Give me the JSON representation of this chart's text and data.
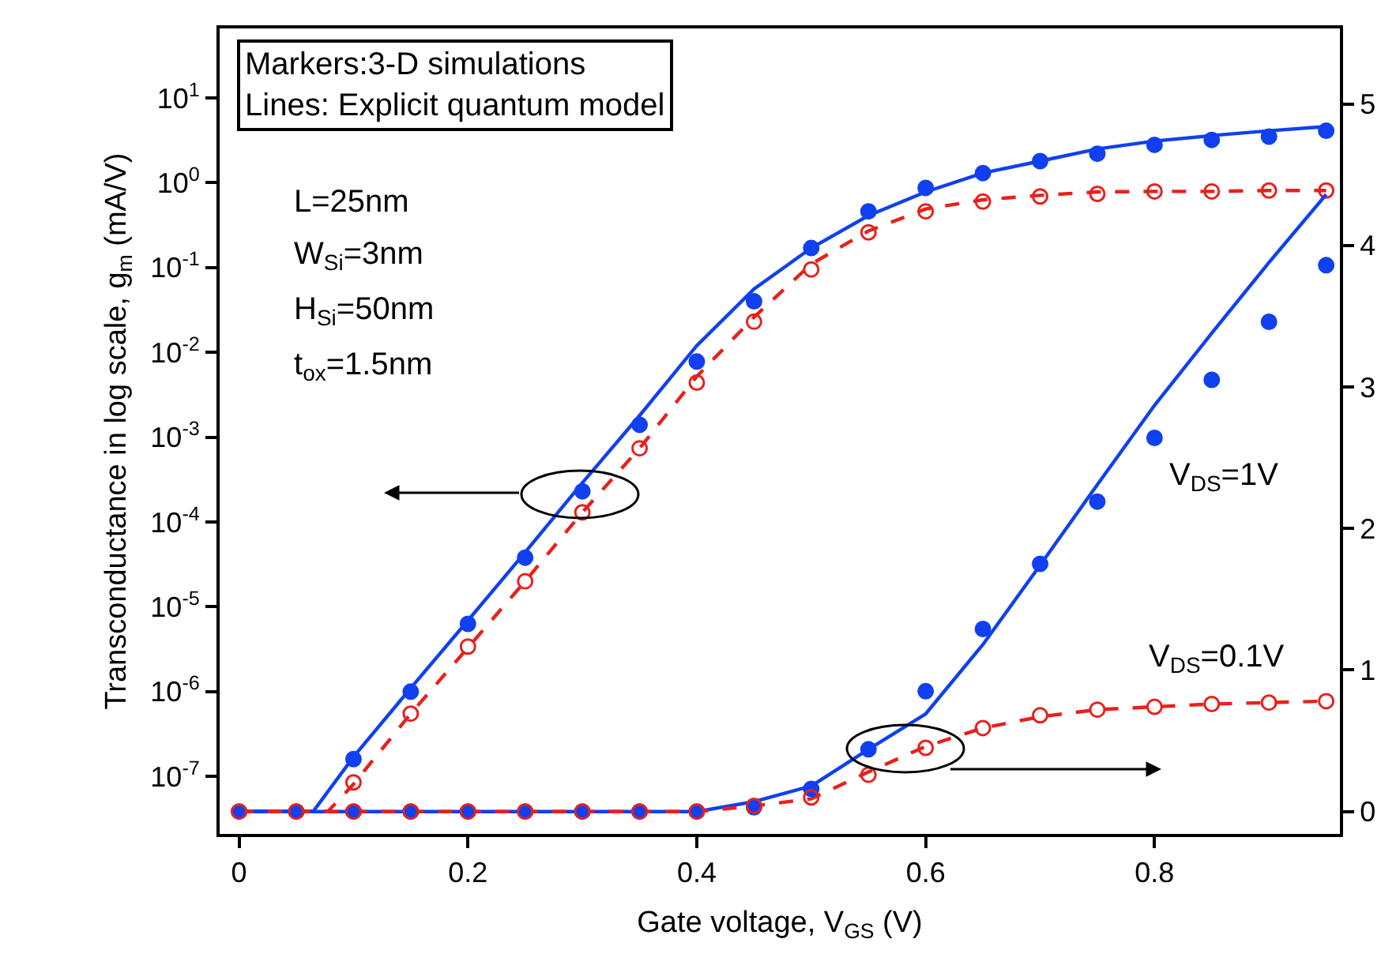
{
  "chart_data": {
    "type": "scatter",
    "xlabel": "Gate voltage, V$_{GS}$ (V)",
    "ylabel": "Transconductance in log scale, g$_{m}$ (mA/V)",
    "xlim": [
      -0.017,
      0.962
    ],
    "xticks": [
      0,
      0.2,
      0.4,
      0.6,
      0.8
    ],
    "log": "y",
    "ylim": [
      2.1e-08,
      66
    ],
    "yticks": [
      {
        "value": 1e-07,
        "label": "10$^{-7}$"
      },
      {
        "value": 1e-06,
        "label": "10$^{-6}$"
      },
      {
        "value": 1e-05,
        "label": "10$^{-5}$"
      },
      {
        "value": 0.0001,
        "label": "10$^{-4}$"
      },
      {
        "value": 0.001,
        "label": "10$^{-3}$"
      },
      {
        "value": 0.01,
        "label": "10$^{-2}$"
      },
      {
        "value": 0.1,
        "label": "10$^{-1}$"
      },
      {
        "value": 1,
        "label": "10$^{0}$"
      },
      {
        "value": 10,
        "label": "10$^{1}$"
      }
    ],
    "y2lim": [
      -0.158,
      5.533
    ],
    "y2ticks": [
      0,
      1,
      2,
      3,
      4,
      5
    ],
    "x": [
      0,
      0.05,
      0.1,
      0.15,
      0.2,
      0.25,
      0.3,
      0.35,
      0.4,
      0.45,
      0.5,
      0.55,
      0.6,
      0.65,
      0.7,
      0.75,
      0.8,
      0.85,
      0.9,
      0.95
    ],
    "series": [
      {
        "type": "line",
        "color": "#1040f0",
        "line_style": "solid",
        "marker": "none",
        "x": [
          0,
          0.065,
          0.1,
          0.15,
          0.2,
          0.25,
          0.3,
          0.35,
          0.4,
          0.45,
          0.5,
          0.55,
          0.6,
          0.65,
          0.7,
          0.75,
          0.8,
          0.85,
          0.9,
          0.95
        ],
        "values": [
          3.9e-08,
          3.9e-08,
          1.7e-07,
          1.1e-06,
          6.9e-06,
          4.4e-05,
          0.00029,
          0.0018,
          0.012,
          0.056,
          0.17,
          0.41,
          0.78,
          1.3,
          1.8,
          2.5,
          3.1,
          3.6,
          4.1,
          4.6
        ]
      },
      {
        "type": "line",
        "color": "#e8201c",
        "line_style": "dashed",
        "marker": "none",
        "x": [
          0,
          0.078,
          0.1,
          0.15,
          0.2,
          0.25,
          0.3,
          0.35,
          0.4,
          0.45,
          0.5,
          0.55,
          0.6,
          0.65,
          0.7,
          0.75,
          0.8,
          0.85,
          0.9,
          0.95
        ],
        "values": [
          3.9e-08,
          3.9e-08,
          8.1e-08,
          5.5e-07,
          3.3e-06,
          2e-05,
          0.00013,
          0.00074,
          0.0052,
          0.026,
          0.11,
          0.27,
          0.49,
          0.63,
          0.71,
          0.78,
          0.79,
          0.79,
          0.81,
          0.81
        ]
      },
      {
        "color": "#1040f0",
        "marker": "circle",
        "values": [
          null,
          null,
          1.6e-07,
          1e-06,
          6.3e-06,
          3.8e-05,
          0.00023,
          0.0014,
          0.0078,
          0.04,
          0.17,
          0.46,
          0.87,
          1.3,
          1.8,
          2.2,
          2.8,
          3.2,
          3.5,
          4.1
        ]
      },
      {
        "color": "#e8201c",
        "marker": "circle-open",
        "values": [
          null,
          null,
          8.5e-08,
          5.5e-07,
          3.4e-06,
          2e-05,
          0.00013,
          0.00074,
          0.0044,
          0.023,
          0.095,
          0.26,
          0.46,
          0.6,
          0.69,
          0.74,
          0.79,
          0.79,
          0.81,
          0.81
        ]
      },
      {
        "type": "line",
        "axis": "y2",
        "color": "#1040f0",
        "line_style": "solid",
        "marker": "none",
        "x": [
          0,
          0.4,
          0.45,
          0.5,
          0.55,
          0.6,
          0.65,
          0.7,
          0.75,
          0.8,
          0.85,
          0.9,
          0.95
        ],
        "values": [
          0,
          0,
          0.07,
          0.18,
          0.44,
          0.69,
          1.18,
          1.74,
          2.31,
          2.87,
          3.38,
          3.88,
          4.36
        ]
      },
      {
        "type": "line",
        "axis": "y2",
        "color": "#e8201c",
        "line_style": "dashed",
        "marker": "none",
        "x": [
          0,
          0.4,
          0.45,
          0.5,
          0.55,
          0.6,
          0.65,
          0.7,
          0.75,
          0.8,
          0.85,
          0.9,
          0.95
        ],
        "values": [
          0,
          0,
          0.04,
          0.09,
          0.28,
          0.46,
          0.59,
          0.67,
          0.72,
          0.74,
          0.76,
          0.77,
          0.78
        ]
      },
      {
        "axis": "y2",
        "color": "#1040f0",
        "marker": "circle",
        "values": [
          0,
          0,
          0,
          0,
          0,
          0,
          0,
          0,
          0,
          0.03,
          0.16,
          0.44,
          0.85,
          1.29,
          1.75,
          2.19,
          2.64,
          3.05,
          3.46,
          3.86
        ]
      },
      {
        "axis": "y2",
        "color": "#e8201c",
        "marker": "circle-open",
        "values": [
          0,
          0,
          0,
          0,
          0,
          0,
          0,
          0,
          0,
          0.04,
          0.1,
          0.26,
          0.45,
          0.59,
          0.68,
          0.72,
          0.74,
          0.76,
          0.77,
          0.78
        ]
      }
    ],
    "annotations": [
      "Markers:3-D simulations\nLines: Explicit quantum model",
      "L=25nm",
      "W$_{Si}$=3nm",
      "H$_{Si}$=50nm",
      "t$_{ox}$=1.5nm",
      "V$_{DS}$=1V",
      "V$_{DS}$=0.1V"
    ]
  }
}
